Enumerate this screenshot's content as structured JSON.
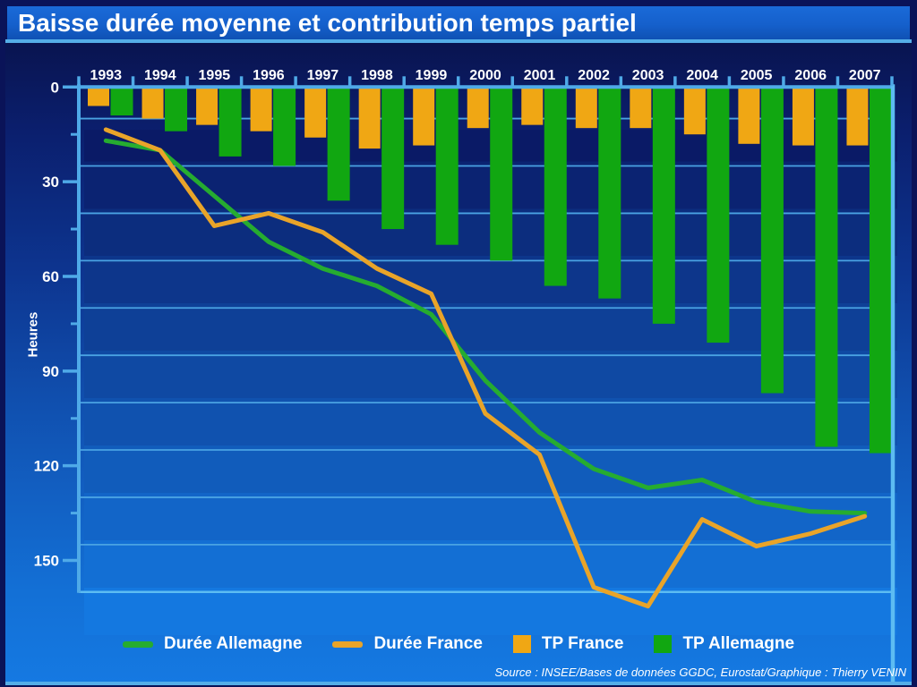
{
  "title": "Baisse durée moyenne et contribution temps partiel",
  "y_axis_label": "Heures",
  "source": "Source : INSEE/Bases de données GGDC, Eurostat/Graphique : Thierry VENIN",
  "colors": {
    "bar_orange": "#f0a714",
    "bar_green": "#11a711",
    "line_green": "#26ac30",
    "line_orange": "#e9a429",
    "axis_blue": "#4faae8",
    "gridline_blue": "#4aa3e3",
    "frame_bright": "#5cbcf2",
    "band_top": "#0a1a66",
    "band_bottom": "#1478e0",
    "text_white": "#ffffff"
  },
  "chart_data": {
    "type": "bar",
    "subtype": "combo-bar-line-inverted",
    "x_categories": [
      "1993",
      "1994",
      "1995",
      "1996",
      "1997",
      "1998",
      "1999",
      "2000",
      "2001",
      "2002",
      "2003",
      "2004",
      "2005",
      "2006",
      "2007"
    ],
    "ylabel": "Heures",
    "ylim": [
      0,
      160
    ],
    "y_inverted": true,
    "y_major_ticks": [
      0,
      30,
      60,
      90,
      120,
      150
    ],
    "y_minor_ticks": [
      15,
      45,
      75,
      105,
      135
    ],
    "gridline_positions": [
      10,
      25,
      40,
      55,
      70,
      85,
      100,
      115,
      130,
      145,
      160
    ],
    "legend_position": "bottom",
    "series": [
      {
        "name": "Durée Allemagne",
        "type": "line",
        "color": "#26ac30",
        "values": [
          17,
          20,
          34.5,
          49,
          57.5,
          63,
          72,
          93,
          109.5,
          121,
          127,
          124.5,
          131.5,
          134.5,
          135
        ]
      },
      {
        "name": "Durée France",
        "type": "line",
        "color": "#e9a429",
        "values": [
          13.5,
          20,
          44,
          40,
          46,
          57.5,
          65.5,
          103.5,
          116.5,
          158.5,
          164.5,
          137,
          145.5,
          141.5,
          136
        ]
      },
      {
        "name": "TP France",
        "type": "bar",
        "color": "#f0a714",
        "values": [
          6,
          10,
          12,
          14,
          16,
          19.5,
          18.5,
          13,
          12,
          13,
          13,
          15,
          18,
          18.5,
          18.5
        ]
      },
      {
        "name": "TP Allemagne",
        "type": "bar",
        "color": "#11a711",
        "values": [
          9,
          14,
          22,
          25,
          36,
          45,
          50,
          55,
          63,
          67,
          75,
          81,
          97,
          114,
          116
        ]
      }
    ]
  }
}
